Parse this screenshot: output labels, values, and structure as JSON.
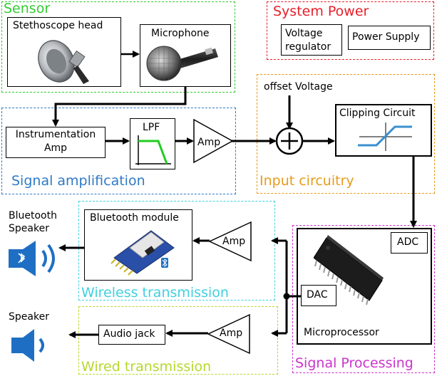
{
  "groups": {
    "sensor": "Sensor",
    "system_power": "System Power",
    "signal_amplification": "Signal amplification",
    "input_circuitry": "Input circuitry",
    "wireless_transmission": "Wireless transmission",
    "wired_transmission": "Wired transmission",
    "signal_processing": "Signal Processing"
  },
  "blocks": {
    "stethoscope_head": "Stethoscope head",
    "microphone": "Microphone",
    "voltage_regulator_line1": "Voltage",
    "voltage_regulator_line2": "regulator",
    "power_supply": "Power Supply",
    "instrumentation_amp_line1": "Instrumentation",
    "instrumentation_amp_line2": "Amp",
    "lpf": "LPF",
    "amp": "Amp",
    "offset_voltage": "offset Voltage",
    "clipping_circuit": "Clipping Circuit",
    "adc": "ADC",
    "dac": "DAC",
    "microprocessor": "Microprocessor",
    "bluetooth_module": "Bluetooth module",
    "bluetooth_speaker_line1": "Bluetooth",
    "bluetooth_speaker_line2": "Speaker",
    "audio_jack": "Audio jack",
    "speaker": "Speaker"
  },
  "colors": {
    "sensor": "#33cc33",
    "system_power": "#e8202a",
    "signal_amplification": "#2f7ac8",
    "input_circuitry": "#e89b1a",
    "wireless_transmission": "#3fd0e0",
    "wired_transmission": "#b5d82c",
    "signal_processing": "#cc33cc",
    "speaker_icon": "#1e6fc4",
    "lpf_curve": "#22cc22",
    "clip_curve": "#3a8fd0"
  }
}
